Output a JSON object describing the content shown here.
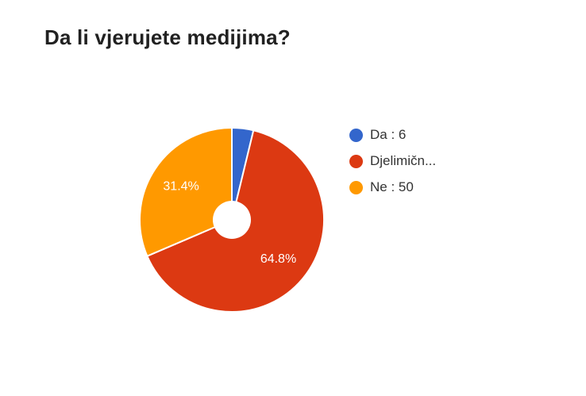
{
  "chart_data": {
    "type": "pie",
    "title": "Da li vjerujete medijima?",
    "donut": true,
    "slices": [
      {
        "legend": "Da : 6",
        "value": 6,
        "percent_label": "",
        "color": "#3366cc"
      },
      {
        "legend": "Djelimičn...",
        "value": 103,
        "percent_label": "64.8%",
        "color": "#dc3912"
      },
      {
        "legend": "Ne : 50",
        "value": 50,
        "percent_label": "31.4%",
        "color": "#ff9900"
      }
    ],
    "legend_position": "right"
  }
}
